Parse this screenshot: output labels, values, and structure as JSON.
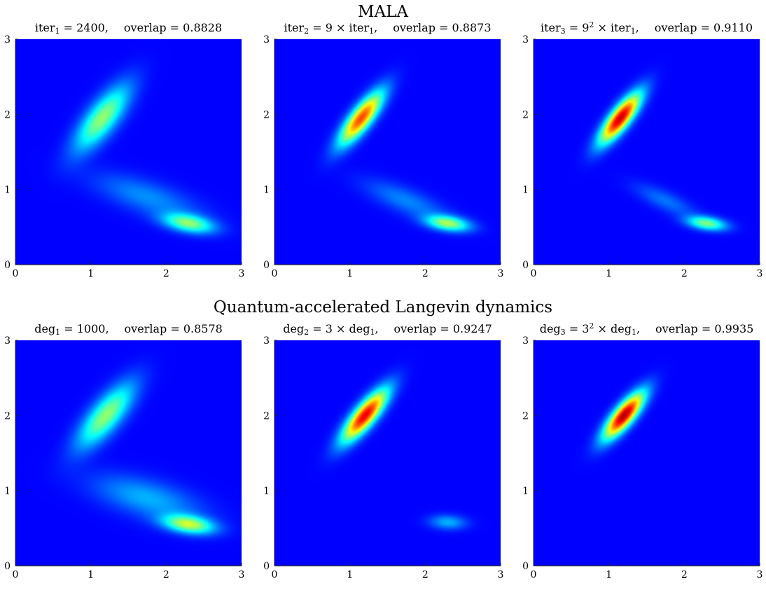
{
  "row_titles": [
    "MALA",
    "Quantum-accelerated Langevin dynamics"
  ],
  "panels": [
    {
      "title": {
        "pre": "iter",
        "sub": "1",
        "sup": "",
        "mid": " = 2400,",
        "post": "",
        "post_sub": "",
        "overlap": "overlap = 0.8828"
      }
    },
    {
      "title": {
        "pre": "iter",
        "sub": "2",
        "sup": "",
        "mid": " = 9 × iter",
        "post": ",",
        "post_sub": "1",
        "overlap": "overlap = 0.8873"
      }
    },
    {
      "title": {
        "pre": "iter",
        "sub": "3",
        "sup": "2",
        "mid": " = 9",
        "post": ",",
        "post_sub": "1",
        "mid2": " × iter",
        "overlap": "overlap = 0.9110"
      }
    },
    {
      "title": {
        "pre": "deg",
        "sub": "1",
        "sup": "",
        "mid": " = 1000,",
        "post": "",
        "post_sub": "",
        "overlap": "overlap = 0.8578"
      }
    },
    {
      "title": {
        "pre": "deg",
        "sub": "2",
        "sup": "",
        "mid": " = 3 × deg",
        "post": ",",
        "post_sub": "1",
        "overlap": "overlap = 0.9247"
      }
    },
    {
      "title": {
        "pre": "deg",
        "sub": "3",
        "sup": "2",
        "mid": " = 3",
        "post": ",",
        "post_sub": "1",
        "mid2": " × deg",
        "overlap": "overlap = 0.9935"
      }
    }
  ],
  "colors": {
    "background": "#000080",
    "colormap": "jet"
  },
  "chart_data": [
    {
      "type": "heatmap",
      "title": "iter1 = 2400, overlap = 0.8828",
      "xlim": [
        0,
        3
      ],
      "ylim": [
        0,
        3
      ],
      "x_ticks": [
        0,
        1,
        2,
        3
      ],
      "y_ticks": [
        0,
        1,
        2,
        3
      ],
      "modes": [
        {
          "cx": 1.15,
          "cy": 1.95,
          "peak": 0.45,
          "major": 0.55,
          "minor": 0.2,
          "angle_deg": 52
        },
        {
          "cx": 2.3,
          "cy": 0.55,
          "peak": 0.42,
          "major": 0.35,
          "minor": 0.12,
          "angle_deg": -10
        },
        {
          "cx": 1.75,
          "cy": 0.9,
          "peak": 0.16,
          "major": 0.75,
          "minor": 0.22,
          "angle_deg": -18
        }
      ]
    },
    {
      "type": "heatmap",
      "title": "iter2 = 9 × iter1, overlap = 0.8873",
      "xlim": [
        0,
        3
      ],
      "ylim": [
        0,
        3
      ],
      "x_ticks": [
        0,
        1,
        2,
        3
      ],
      "y_ticks": [
        0,
        1,
        2,
        3
      ],
      "modes": [
        {
          "cx": 1.15,
          "cy": 1.95,
          "peak": 0.78,
          "major": 0.45,
          "minor": 0.14,
          "angle_deg": 52
        },
        {
          "cx": 2.3,
          "cy": 0.55,
          "peak": 0.45,
          "major": 0.3,
          "minor": 0.1,
          "angle_deg": -8
        },
        {
          "cx": 1.75,
          "cy": 0.85,
          "peak": 0.15,
          "major": 0.6,
          "minor": 0.17,
          "angle_deg": -22
        }
      ]
    },
    {
      "type": "heatmap",
      "title": "iter3 = 9^2 × iter1, overlap = 0.9110",
      "xlim": [
        0,
        3
      ],
      "ylim": [
        0,
        3
      ],
      "x_ticks": [
        0,
        1,
        2,
        3
      ],
      "y_ticks": [
        0,
        1,
        2,
        3
      ],
      "modes": [
        {
          "cx": 1.15,
          "cy": 1.95,
          "peak": 0.92,
          "major": 0.42,
          "minor": 0.13,
          "angle_deg": 52
        },
        {
          "cx": 2.3,
          "cy": 0.55,
          "peak": 0.42,
          "major": 0.27,
          "minor": 0.09,
          "angle_deg": -8
        },
        {
          "cx": 1.75,
          "cy": 0.85,
          "peak": 0.13,
          "major": 0.45,
          "minor": 0.13,
          "angle_deg": -25
        }
      ]
    },
    {
      "type": "heatmap",
      "title": "deg1 = 1000, overlap = 0.8578",
      "xlim": [
        0,
        3
      ],
      "ylim": [
        0,
        3
      ],
      "x_ticks": [
        0,
        1,
        2,
        3
      ],
      "y_ticks": [
        0,
        1,
        2,
        3
      ],
      "modes": [
        {
          "cx": 1.2,
          "cy": 2.0,
          "peak": 0.45,
          "major": 0.55,
          "minor": 0.2,
          "angle_deg": 50
        },
        {
          "cx": 2.3,
          "cy": 0.55,
          "peak": 0.48,
          "major": 0.35,
          "minor": 0.12,
          "angle_deg": -8
        },
        {
          "cx": 1.75,
          "cy": 0.9,
          "peak": 0.2,
          "major": 0.75,
          "minor": 0.25,
          "angle_deg": -15
        }
      ]
    },
    {
      "type": "heatmap",
      "title": "deg2 = 3 × deg1, overlap = 0.9247",
      "xlim": [
        0,
        3
      ],
      "ylim": [
        0,
        3
      ],
      "x_ticks": [
        0,
        1,
        2,
        3
      ],
      "y_ticks": [
        0,
        1,
        2,
        3
      ],
      "modes": [
        {
          "cx": 1.2,
          "cy": 2.0,
          "peak": 0.88,
          "major": 0.45,
          "minor": 0.14,
          "angle_deg": 50
        },
        {
          "cx": 2.3,
          "cy": 0.58,
          "peak": 0.2,
          "major": 0.25,
          "minor": 0.1,
          "angle_deg": -3
        }
      ]
    },
    {
      "type": "heatmap",
      "title": "deg3 = 3^2 × deg1, overlap = 0.9935",
      "xlim": [
        0,
        3
      ],
      "ylim": [
        0,
        3
      ],
      "x_ticks": [
        0,
        1,
        2,
        3
      ],
      "y_ticks": [
        0,
        1,
        2,
        3
      ],
      "modes": [
        {
          "cx": 1.2,
          "cy": 2.0,
          "peak": 0.95,
          "major": 0.4,
          "minor": 0.13,
          "angle_deg": 50
        }
      ]
    }
  ]
}
